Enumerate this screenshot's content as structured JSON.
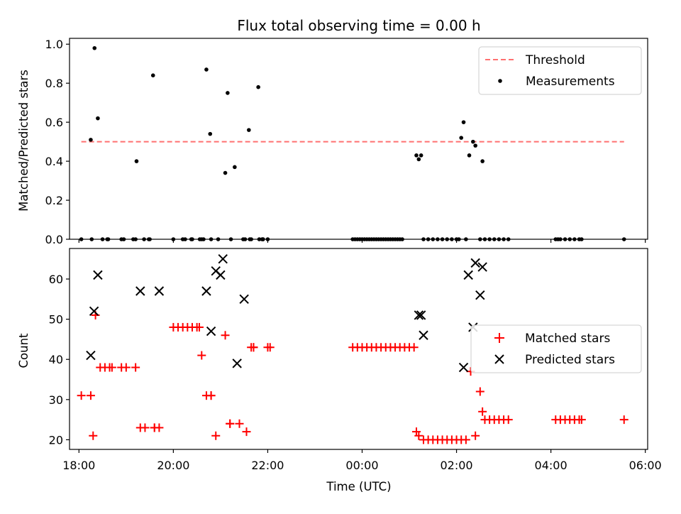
{
  "chart_data": [
    {
      "type": "scatter",
      "title": "Flux total observing time = 0.00 h",
      "xlabel": "",
      "ylabel": "Matched/Predicted stars",
      "xlim": [
        -6.2,
        6.05
      ],
      "ylim": [
        0,
        1.03
      ],
      "yticks": [
        0.0,
        0.2,
        0.4,
        0.6,
        0.8,
        1.0
      ],
      "ytick_labels": [
        "0.0",
        "0.2",
        "0.4",
        "0.6",
        "0.8",
        "1.0"
      ],
      "xticks": [
        -6,
        -4,
        -2,
        0,
        2,
        4,
        6
      ],
      "grid": false,
      "legend": {
        "location": "upper right",
        "entries": [
          "Threshold",
          "Measurements"
        ]
      },
      "threshold": {
        "name": "Threshold",
        "y": 0.5,
        "x": [
          -5.95,
          5.55
        ],
        "color": "#ff7070",
        "style": "dashed"
      },
      "series": [
        {
          "name": "Measurements",
          "marker": "dot",
          "color": "#000000",
          "x": [
            -5.95,
            -5.75,
            -5.73,
            -5.67,
            -5.6,
            -5.5,
            -5.4,
            -5.38,
            -5.1,
            -5.05,
            -4.85,
            -4.8,
            -4.78,
            -4.62,
            -4.52,
            -4.5,
            -4.43,
            -4.0,
            -3.8,
            -3.75,
            -3.62,
            -3.6,
            -3.44,
            -3.4,
            -3.36,
            -3.3,
            -3.22,
            -3.2,
            -3.05,
            -2.9,
            -2.85,
            -2.78,
            -2.7,
            -2.52,
            -2.48,
            -2.4,
            -2.38,
            -2.35,
            -2.2,
            -2.18,
            -2.12,
            -2.1,
            -2.1,
            -2.0,
            -0.2,
            -0.15,
            -0.1,
            -0.05,
            0.0,
            0.05,
            0.1,
            0.15,
            0.2,
            0.25,
            0.3,
            0.35,
            0.4,
            0.45,
            0.5,
            0.55,
            0.6,
            0.65,
            0.7,
            0.75,
            0.8,
            0.85,
            1.15,
            1.2,
            1.25,
            1.3,
            1.4,
            1.5,
            1.6,
            1.7,
            1.8,
            1.9,
            2.0,
            2.05,
            2.1,
            2.15,
            2.2,
            2.27,
            2.35,
            2.4,
            2.5,
            2.55,
            2.6,
            2.7,
            2.8,
            2.9,
            3.0,
            3.1,
            4.1,
            4.15,
            4.2,
            4.3,
            4.4,
            4.5,
            4.6,
            4.65,
            5.55
          ],
          "y": [
            0.0,
            0.51,
            0.0,
            0.98,
            0.62,
            0.0,
            0.0,
            0.0,
            0.0,
            0.0,
            0.0,
            0.0,
            0.4,
            0.0,
            0.0,
            0.0,
            0.84,
            0.0,
            0.0,
            0.0,
            0.0,
            0.0,
            0.0,
            0.0,
            0.0,
            0.87,
            0.54,
            0.0,
            0.0,
            0.34,
            0.75,
            0.0,
            0.37,
            0.0,
            0.0,
            0.56,
            0.0,
            0.0,
            0.78,
            0.0,
            0.0,
            0.0,
            0.0,
            0.0,
            0.0,
            0.0,
            0.0,
            0.0,
            0.0,
            0.0,
            0.0,
            0.0,
            0.0,
            0.0,
            0.0,
            0.0,
            0.0,
            0.0,
            0.0,
            0.0,
            0.0,
            0.0,
            0.0,
            0.0,
            0.0,
            0.0,
            0.43,
            0.41,
            0.43,
            0.0,
            0.0,
            0.0,
            0.0,
            0.0,
            0.0,
            0.0,
            0.0,
            0.0,
            0.52,
            0.6,
            0.0,
            0.43,
            0.5,
            0.48,
            0.0,
            0.4,
            0.0,
            0.0,
            0.0,
            0.0,
            0.0,
            0.0,
            0.0,
            0.0,
            0.0,
            0.0,
            0.0,
            0.0,
            0.0,
            0.0,
            0.0
          ]
        }
      ]
    },
    {
      "type": "scatter",
      "title": "",
      "xlabel": "Time (UTC)",
      "ylabel": "Count",
      "xlim": [
        -6.2,
        6.05
      ],
      "ylim": [
        17.6,
        67.6
      ],
      "yticks": [
        20,
        30,
        40,
        50,
        60
      ],
      "ytick_labels": [
        "20",
        "30",
        "40",
        "50",
        "60"
      ],
      "xticks": [
        -6,
        -4,
        -2,
        0,
        2,
        4,
        6
      ],
      "xtick_labels": [
        "18:00",
        "20:00",
        "22:00",
        "00:00",
        "02:00",
        "04:00",
        "06:00"
      ],
      "grid": false,
      "legend": {
        "location": "center right",
        "entries": [
          "Matched stars",
          "Predicted stars"
        ]
      },
      "series": [
        {
          "name": "Matched stars",
          "marker": "plus",
          "color": "#ff0000",
          "x": [
            -5.95,
            -5.75,
            -5.7,
            -5.65,
            -5.55,
            -5.45,
            -5.35,
            -5.3,
            -5.1,
            -5.0,
            -4.8,
            -4.7,
            -4.6,
            -4.4,
            -4.4,
            -4.3,
            -4.0,
            -3.9,
            -3.8,
            -3.7,
            -3.6,
            -3.5,
            -3.45,
            -3.4,
            -3.3,
            -3.2,
            -3.2,
            -3.1,
            -2.9,
            -2.8,
            -2.8,
            -2.6,
            -2.45,
            -2.35,
            -2.3,
            -2.3,
            -2.0,
            -1.95,
            -0.2,
            -0.1,
            0.0,
            0.1,
            0.2,
            0.3,
            0.4,
            0.5,
            0.6,
            0.7,
            0.8,
            0.9,
            1.0,
            1.1,
            1.15,
            1.2,
            1.3,
            1.4,
            1.5,
            1.6,
            1.7,
            1.8,
            1.9,
            2.0,
            2.1,
            2.2,
            2.3,
            2.4,
            2.5,
            2.55,
            2.6,
            2.7,
            2.8,
            2.9,
            3.0,
            3.1,
            4.1,
            4.2,
            4.3,
            4.4,
            4.5,
            4.6,
            4.65,
            5.55
          ],
          "y": [
            31,
            31,
            21,
            51,
            38,
            38,
            38,
            38,
            38,
            38,
            38,
            23,
            23,
            23,
            23,
            23,
            48,
            48,
            48,
            48,
            48,
            48,
            48,
            41,
            31,
            31,
            31,
            21,
            46,
            24,
            24,
            24,
            22,
            43,
            43,
            43,
            43,
            43,
            43,
            43,
            43,
            43,
            43,
            43,
            43,
            43,
            43,
            43,
            43,
            43,
            43,
            43,
            22,
            21,
            20,
            20,
            20,
            20,
            20,
            20,
            20,
            20,
            20,
            20,
            37,
            21,
            32,
            27,
            25,
            25,
            25,
            25,
            25,
            25,
            25,
            25,
            25,
            25,
            25,
            25,
            25,
            25
          ],
          "visible_y": [
            31,
            31,
            21,
            51,
            38,
            38,
            38,
            38,
            38,
            38,
            38,
            23,
            23,
            23,
            23,
            23,
            48,
            48,
            48,
            48,
            48,
            48,
            48,
            41,
            31,
            31,
            31,
            21,
            46,
            24,
            24,
            24,
            22,
            43,
            43,
            43,
            43,
            43,
            43,
            43,
            43,
            43,
            43,
            43,
            43,
            43,
            43,
            43,
            43,
            43,
            43,
            43,
            22,
            21,
            20,
            20,
            20,
            20,
            20,
            20,
            20,
            20,
            20,
            20,
            37,
            21,
            32,
            27,
            25,
            25,
            25,
            25,
            25,
            25,
            25,
            25,
            25,
            25,
            25,
            25,
            25,
            25
          ]
        },
        {
          "name": "Predicted stars",
          "marker": "x",
          "color": "#000000",
          "x": [
            -5.75,
            -5.68,
            -5.6,
            -4.7,
            -4.3,
            -3.2,
            -3.3,
            -3.1,
            -3.0,
            -2.95,
            -2.65,
            -2.5,
            1.2,
            1.25,
            1.3,
            2.15,
            2.25,
            2.35,
            2.4,
            2.5,
            2.55
          ],
          "y": [
            41,
            52,
            61,
            57,
            57,
            47,
            57,
            62,
            61,
            65,
            39,
            55,
            51,
            51,
            46,
            38,
            61,
            48,
            64,
            56,
            63
          ]
        }
      ]
    }
  ]
}
